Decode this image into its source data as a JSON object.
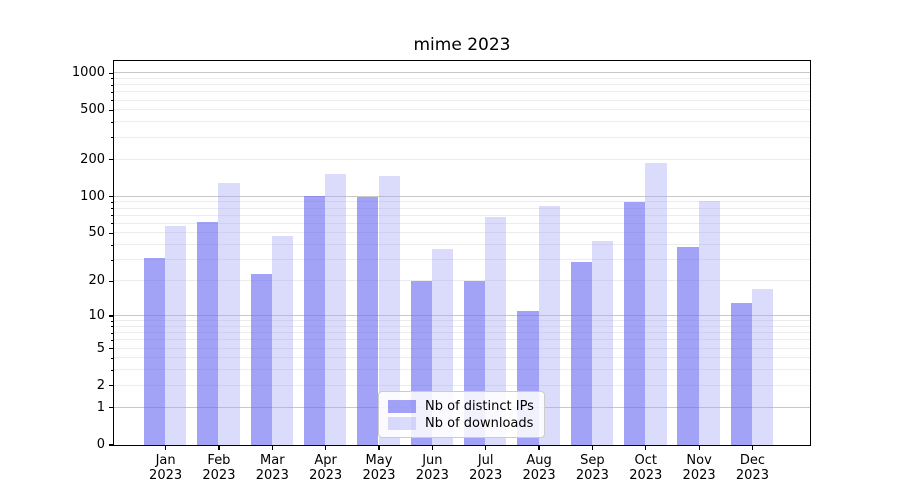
{
  "chart_data": {
    "type": "bar",
    "title": "mime 2023",
    "categories": [
      "Jan",
      "Feb",
      "Mar",
      "Apr",
      "May",
      "Jun",
      "Jul",
      "Aug",
      "Sep",
      "Oct",
      "Nov",
      "Dec"
    ],
    "x_year_label": "2023",
    "series": [
      {
        "name": "Nb of distinct IPs",
        "color": "rgba(108,108,241,0.63)",
        "color_on_white": "#a2a2f6",
        "values": [
          31,
          61,
          23,
          100,
          98,
          20,
          20,
          11,
          29,
          90,
          38,
          13
        ]
      },
      {
        "name": "Nb of downloads",
        "color": "rgba(163,163,245,0.39)",
        "color_on_white": "#dbdbfb",
        "values": [
          57,
          128,
          47,
          152,
          145,
          37,
          68,
          83,
          43,
          186,
          92,
          17
        ]
      }
    ],
    "y_scale": "log1p",
    "ylim": [
      0,
      1258
    ],
    "y_ticks": [
      0,
      1,
      2,
      5,
      10,
      20,
      50,
      100,
      200,
      500,
      1000
    ],
    "y_major_gridlines": [
      1,
      10,
      100,
      1000
    ],
    "y_minor_gridlines": [
      2,
      3,
      4,
      5,
      6,
      7,
      8,
      9,
      20,
      30,
      40,
      50,
      60,
      70,
      80,
      90,
      200,
      300,
      400,
      500,
      600,
      700,
      800,
      900
    ],
    "grid": true,
    "legend_position": "lower center",
    "gridline_major_color": "#c8c8c8",
    "gridline_minor_color": "#ececec"
  }
}
